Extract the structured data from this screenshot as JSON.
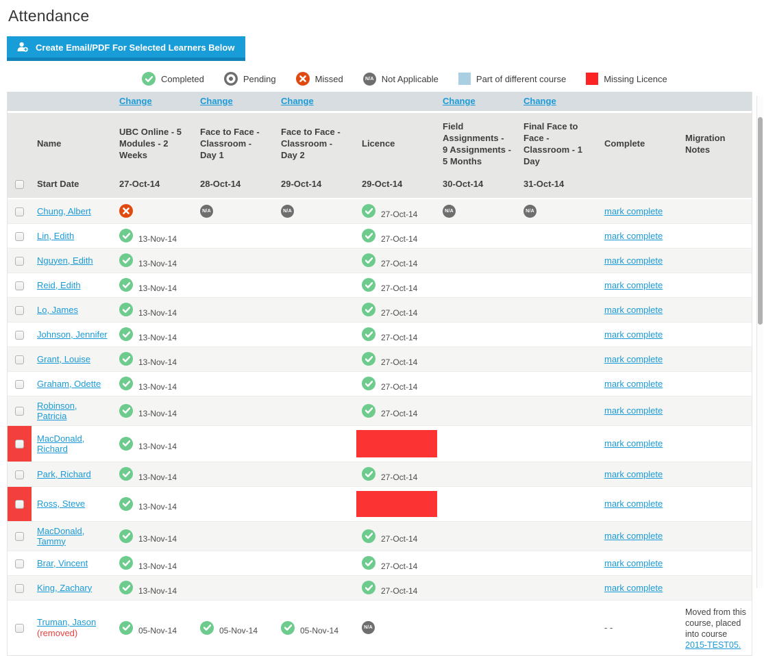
{
  "page": {
    "title": "Attendance"
  },
  "toolbar": {
    "create_button_label": "Create Email/PDF For Selected Learners Below"
  },
  "legend": [
    {
      "key": "completed",
      "label": "Completed",
      "icon": "completed-icon",
      "type": "completed"
    },
    {
      "key": "pending",
      "label": "Pending",
      "icon": "pending-icon",
      "type": "pending"
    },
    {
      "key": "missed",
      "label": "Missed",
      "icon": "missed-icon",
      "type": "missed"
    },
    {
      "key": "not-applicable",
      "label": "Not Applicable",
      "icon": "not-applicable-icon",
      "type": "na"
    },
    {
      "key": "different-course",
      "label": "Part of different course",
      "icon": "different-course-swatch",
      "type": "square-blue"
    },
    {
      "key": "missing-licence",
      "label": "Missing Licence",
      "icon": "missing-licence-swatch",
      "type": "square-red"
    }
  ],
  "colors": {
    "accent_blue": "#199dd9",
    "accent_blue_dark": "#1283ba",
    "link_blue": "#1a9bd7",
    "completed_green": "#6dcb8d",
    "missed_red": "#e04a10",
    "na_gray": "#6e6e6e",
    "missing_licence_red": "#fb3333",
    "different_course_blue": "#aacfe3",
    "header_gray": "#e7e7e5",
    "change_row_gray": "#d8dde2",
    "stripe_gray": "#f5f5f3",
    "removed_red": "#e8403d"
  },
  "table": {
    "change_label": "Change",
    "name_header": "Name",
    "start_date_label": "Start Date",
    "complete_header": "Complete",
    "migration_header": "Migration Notes",
    "mark_complete_label": "mark complete",
    "courses": [
      {
        "label": "UBC Online - 5 Modules - 2 Weeks",
        "start_date": "27-Oct-14",
        "has_change": true
      },
      {
        "label": "Face to Face - Classroom - Day 1",
        "start_date": "28-Oct-14",
        "has_change": true
      },
      {
        "label": "Face to Face - Classroom - Day 2",
        "start_date": "29-Oct-14",
        "has_change": true
      },
      {
        "label": "Licence",
        "start_date": "29-Oct-14",
        "has_change": false
      },
      {
        "label": "Field Assignments - 9 Assignments - 5 Months",
        "start_date": "30-Oct-14",
        "has_change": true
      },
      {
        "label": "Final Face to Face - Classroom - 1 Day",
        "start_date": "31-Oct-14",
        "has_change": true
      }
    ],
    "rows": [
      {
        "name": "Chung, Albert",
        "flagged": false,
        "removed": false,
        "cells": [
          {
            "type": "missed"
          },
          {
            "type": "na"
          },
          {
            "type": "na"
          },
          {
            "type": "completed",
            "date": "27-Oct-14"
          },
          {
            "type": "na"
          },
          {
            "type": "na"
          }
        ],
        "complete": {
          "type": "link",
          "label": "mark complete"
        }
      },
      {
        "name": "Lin, Edith",
        "flagged": false,
        "removed": false,
        "cells": [
          {
            "type": "completed",
            "date": "13-Nov-14"
          },
          {
            "type": "none"
          },
          {
            "type": "none"
          },
          {
            "type": "completed",
            "date": "27-Oct-14"
          },
          {
            "type": "none"
          },
          {
            "type": "none"
          }
        ],
        "complete": {
          "type": "link",
          "label": "mark complete"
        }
      },
      {
        "name": "Nguyen, Edith",
        "flagged": false,
        "removed": false,
        "cells": [
          {
            "type": "completed",
            "date": "13-Nov-14"
          },
          {
            "type": "none"
          },
          {
            "type": "none"
          },
          {
            "type": "completed",
            "date": "27-Oct-14"
          },
          {
            "type": "none"
          },
          {
            "type": "none"
          }
        ],
        "complete": {
          "type": "link",
          "label": "mark complete"
        }
      },
      {
        "name": "Reid, Edith",
        "flagged": false,
        "removed": false,
        "cells": [
          {
            "type": "completed",
            "date": "13-Nov-14"
          },
          {
            "type": "none"
          },
          {
            "type": "none"
          },
          {
            "type": "completed",
            "date": "27-Oct-14"
          },
          {
            "type": "none"
          },
          {
            "type": "none"
          }
        ],
        "complete": {
          "type": "link",
          "label": "mark complete"
        }
      },
      {
        "name": "Lo, James",
        "flagged": false,
        "removed": false,
        "cells": [
          {
            "type": "completed",
            "date": "13-Nov-14"
          },
          {
            "type": "none"
          },
          {
            "type": "none"
          },
          {
            "type": "completed",
            "date": "27-Oct-14"
          },
          {
            "type": "none"
          },
          {
            "type": "none"
          }
        ],
        "complete": {
          "type": "link",
          "label": "mark complete"
        }
      },
      {
        "name": "Johnson, Jennifer",
        "flagged": false,
        "removed": false,
        "cells": [
          {
            "type": "completed",
            "date": "13-Nov-14"
          },
          {
            "type": "none"
          },
          {
            "type": "none"
          },
          {
            "type": "completed",
            "date": "27-Oct-14"
          },
          {
            "type": "none"
          },
          {
            "type": "none"
          }
        ],
        "complete": {
          "type": "link",
          "label": "mark complete"
        }
      },
      {
        "name": "Grant, Louise",
        "flagged": false,
        "removed": false,
        "cells": [
          {
            "type": "completed",
            "date": "13-Nov-14"
          },
          {
            "type": "none"
          },
          {
            "type": "none"
          },
          {
            "type": "completed",
            "date": "27-Oct-14"
          },
          {
            "type": "none"
          },
          {
            "type": "none"
          }
        ],
        "complete": {
          "type": "link",
          "label": "mark complete"
        }
      },
      {
        "name": "Graham, Odette",
        "flagged": false,
        "removed": false,
        "cells": [
          {
            "type": "completed",
            "date": "13-Nov-14"
          },
          {
            "type": "none"
          },
          {
            "type": "none"
          },
          {
            "type": "completed",
            "date": "27-Oct-14"
          },
          {
            "type": "none"
          },
          {
            "type": "none"
          }
        ],
        "complete": {
          "type": "link",
          "label": "mark complete"
        }
      },
      {
        "name": "Robinson, Patricia",
        "flagged": false,
        "removed": false,
        "cells": [
          {
            "type": "completed",
            "date": "13-Nov-14"
          },
          {
            "type": "none"
          },
          {
            "type": "none"
          },
          {
            "type": "completed",
            "date": "27-Oct-14"
          },
          {
            "type": "none"
          },
          {
            "type": "none"
          }
        ],
        "complete": {
          "type": "link",
          "label": "mark complete"
        }
      },
      {
        "name": "MacDonald, Richard",
        "flagged": true,
        "removed": false,
        "cells": [
          {
            "type": "completed",
            "date": "13-Nov-14"
          },
          {
            "type": "none"
          },
          {
            "type": "none"
          },
          {
            "type": "missing"
          },
          {
            "type": "none"
          },
          {
            "type": "none"
          }
        ],
        "complete": {
          "type": "link",
          "label": "mark complete"
        }
      },
      {
        "name": "Park, Richard",
        "flagged": false,
        "removed": false,
        "cells": [
          {
            "type": "completed",
            "date": "13-Nov-14"
          },
          {
            "type": "none"
          },
          {
            "type": "none"
          },
          {
            "type": "completed",
            "date": "27-Oct-14"
          },
          {
            "type": "none"
          },
          {
            "type": "none"
          }
        ],
        "complete": {
          "type": "link",
          "label": "mark complete"
        }
      },
      {
        "name": "Ross, Steve",
        "flagged": true,
        "removed": false,
        "cells": [
          {
            "type": "completed",
            "date": "13-Nov-14"
          },
          {
            "type": "none"
          },
          {
            "type": "none"
          },
          {
            "type": "missing"
          },
          {
            "type": "none"
          },
          {
            "type": "none"
          }
        ],
        "complete": {
          "type": "link",
          "label": "mark complete"
        }
      },
      {
        "name": "MacDonald, Tammy",
        "flagged": false,
        "removed": false,
        "cells": [
          {
            "type": "completed",
            "date": "13-Nov-14"
          },
          {
            "type": "none"
          },
          {
            "type": "none"
          },
          {
            "type": "completed",
            "date": "27-Oct-14"
          },
          {
            "type": "none"
          },
          {
            "type": "none"
          }
        ],
        "complete": {
          "type": "link",
          "label": "mark complete"
        }
      },
      {
        "name": "Brar, Vincent",
        "flagged": false,
        "removed": false,
        "cells": [
          {
            "type": "completed",
            "date": "13-Nov-14"
          },
          {
            "type": "none"
          },
          {
            "type": "none"
          },
          {
            "type": "completed",
            "date": "27-Oct-14"
          },
          {
            "type": "none"
          },
          {
            "type": "none"
          }
        ],
        "complete": {
          "type": "link",
          "label": "mark complete"
        }
      },
      {
        "name": "King, Zachary",
        "flagged": false,
        "removed": false,
        "cells": [
          {
            "type": "completed",
            "date": "13-Nov-14"
          },
          {
            "type": "none"
          },
          {
            "type": "none"
          },
          {
            "type": "completed",
            "date": "27-Oct-14"
          },
          {
            "type": "none"
          },
          {
            "type": "none"
          }
        ],
        "complete": {
          "type": "link",
          "label": "mark complete"
        }
      },
      {
        "name": "Truman, Jason",
        "flagged": false,
        "removed": true,
        "removed_label": "(removed)",
        "cells": [
          {
            "type": "completed",
            "date": "05-Nov-14"
          },
          {
            "type": "completed",
            "date": "05-Nov-14"
          },
          {
            "type": "completed",
            "date": "05-Nov-14"
          },
          {
            "type": "na"
          },
          {
            "type": "none"
          },
          {
            "type": "none"
          }
        ],
        "complete": {
          "type": "text",
          "label": "- -"
        },
        "migration": {
          "text_before": "Moved from this course, placed into course ",
          "link_label": "2015-TEST05."
        }
      }
    ]
  }
}
